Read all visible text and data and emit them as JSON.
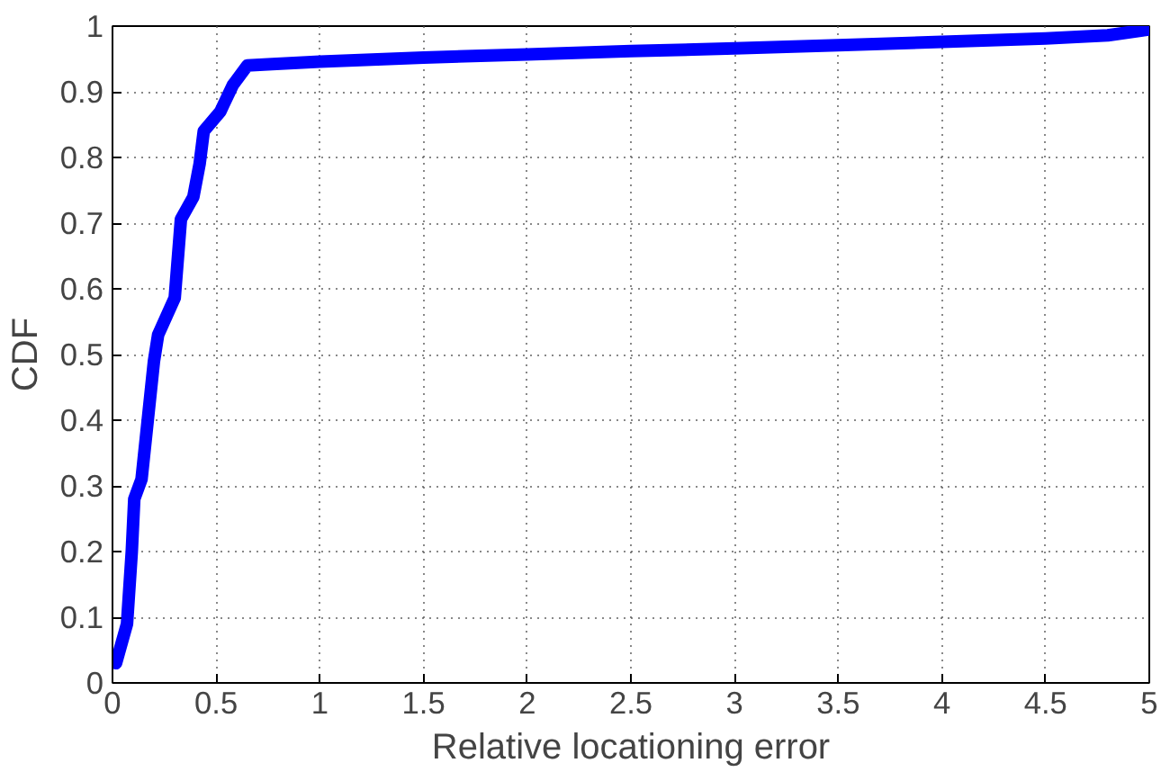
{
  "chart_data": {
    "type": "line",
    "xlabel": "Relative locationing error",
    "ylabel": "CDF",
    "x": [
      0.017,
      0.07,
      0.093,
      0.105,
      0.14,
      0.17,
      0.2,
      0.22,
      0.3,
      0.33,
      0.39,
      0.42,
      0.44,
      0.52,
      0.58,
      0.65,
      0.77,
      1.0,
      1.5,
      2.0,
      2.5,
      3.0,
      3.5,
      4.0,
      4.5,
      4.8,
      5.0
    ],
    "series": [
      {
        "color": "#0000ff",
        "values": [
          0.03,
          0.09,
          0.2,
          0.28,
          0.31,
          0.4,
          0.49,
          0.53,
          0.586,
          0.706,
          0.74,
          0.79,
          0.84,
          0.87,
          0.91,
          0.94,
          0.942,
          0.946,
          0.952,
          0.957,
          0.962,
          0.966,
          0.971,
          0.976,
          0.981,
          0.986,
          0.995
        ]
      }
    ],
    "xlim": [
      0,
      5
    ],
    "ylim": [
      0,
      1
    ],
    "xticks": [
      0,
      0.5,
      1,
      1.5,
      2,
      2.5,
      3,
      3.5,
      4,
      4.5,
      5
    ],
    "yticks": [
      0,
      0.1,
      0.2,
      0.3,
      0.4,
      0.5,
      0.6,
      0.7,
      0.8,
      0.9,
      1
    ],
    "grid": true,
    "line_style": "solid"
  }
}
